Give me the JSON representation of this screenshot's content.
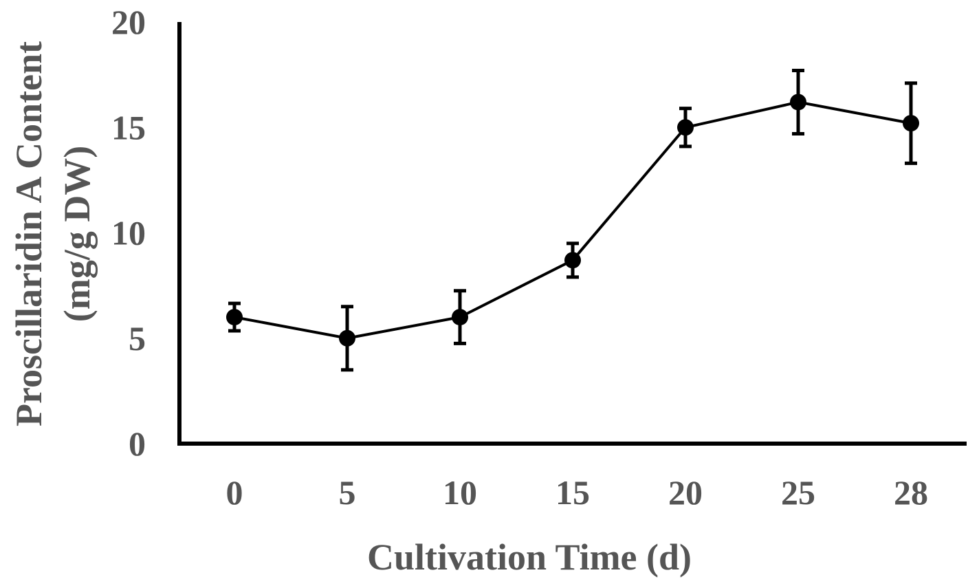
{
  "chart_data": {
    "type": "line",
    "title": "",
    "xlabel": "Cultivation Time (d)",
    "ylabel_lines": [
      "Proscillaridin A Content",
      "(mg/g DW)"
    ],
    "categories": [
      "0",
      "5",
      "10",
      "15",
      "20",
      "25",
      "28"
    ],
    "ylim": [
      0,
      20
    ],
    "yticks": [
      "0",
      "5",
      "10",
      "15",
      "20"
    ],
    "grid": false,
    "legend": "none",
    "series": [
      {
        "name": "Proscillaridin A",
        "values": [
          6.0,
          5.0,
          6.0,
          8.7,
          15.0,
          16.2,
          15.2
        ],
        "error": [
          0.65,
          1.5,
          1.25,
          0.8,
          0.9,
          1.5,
          1.9
        ]
      }
    ],
    "colors": {
      "line": "#000000",
      "axis": "#000000",
      "text": "#555555"
    }
  }
}
